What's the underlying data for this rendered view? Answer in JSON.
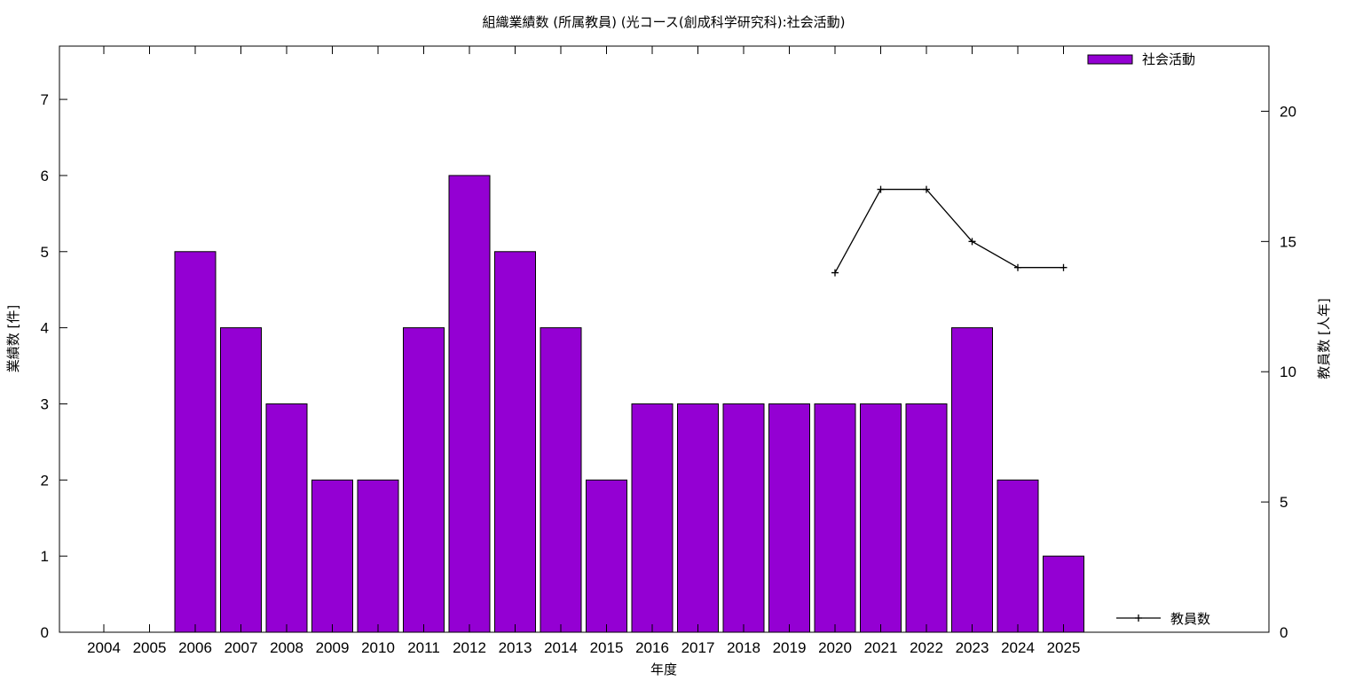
{
  "chart_data": {
    "type": "bar",
    "title": "組織業績数 (所属教員) (光コース(創成科学研究科):社会活動)",
    "xlabel": "年度",
    "ylabel": "業績数 [件]",
    "y2label": "教員数 [人年]",
    "categories": [
      "2004",
      "2005",
      "2006",
      "2007",
      "2008",
      "2009",
      "2010",
      "2011",
      "2012",
      "2013",
      "2014",
      "2015",
      "2016",
      "2017",
      "2018",
      "2019",
      "2020",
      "2021",
      "2022",
      "2023",
      "2024",
      "2025"
    ],
    "series": [
      {
        "name": "社会活動",
        "type": "bar",
        "axis": "left",
        "color": "#9400d3",
        "values": [
          0,
          0,
          5,
          4,
          3,
          2,
          2,
          4,
          6,
          5,
          4,
          2,
          3,
          3,
          3,
          3,
          3,
          3,
          3,
          4,
          2,
          1
        ]
      },
      {
        "name": "教員数",
        "type": "line",
        "axis": "right",
        "color": "#000000",
        "values": [
          null,
          null,
          null,
          null,
          null,
          null,
          null,
          null,
          null,
          null,
          null,
          null,
          null,
          null,
          null,
          null,
          13.8,
          17,
          17,
          15,
          14,
          14
        ]
      }
    ],
    "ylim": [
      0,
      7.7
    ],
    "yticks": [
      0,
      1,
      2,
      3,
      4,
      5,
      6,
      7
    ],
    "y2lim": [
      0,
      22.5
    ],
    "y2ticks": [
      0,
      5,
      10,
      15,
      20
    ],
    "legend": [
      {
        "label": "社会活動",
        "placement": "top-right",
        "kind": "bar"
      },
      {
        "label": "教員数",
        "placement": "bottom-right",
        "kind": "line"
      }
    ],
    "grid": false
  }
}
